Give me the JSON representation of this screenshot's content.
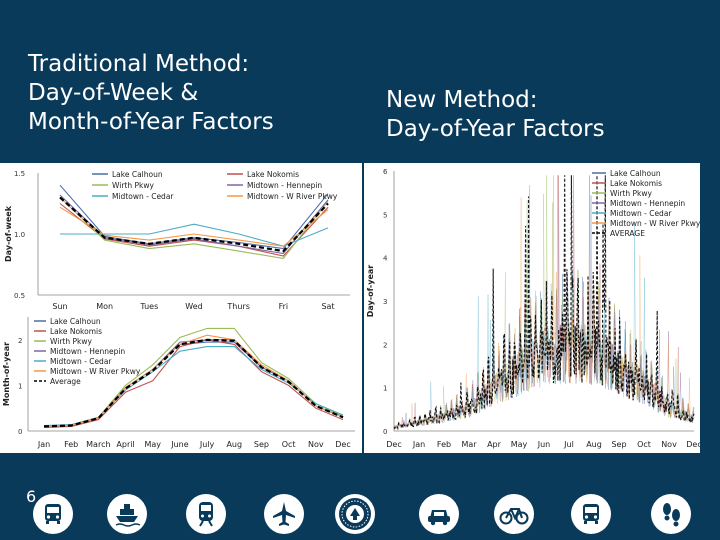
{
  "slide": {
    "title_left_lines": [
      "Traditional Method:",
      "Day-of-Week &",
      "Month-of-Year Factors"
    ],
    "title_right_lines": [
      "New Method:",
      "Day-of-Year Factors"
    ],
    "page_number": "6",
    "icons": [
      "bus-icon",
      "ferry-icon",
      "train-icon",
      "airplane-icon",
      "department-seal-icon",
      "car-icon",
      "bicycle-icon",
      "bus-icon",
      "walking-footprints-icon"
    ]
  },
  "chart_data": [
    {
      "type": "line",
      "ylabel": "Day-of-week",
      "categories": [
        "Sun",
        "Mon",
        "Tues",
        "Wed",
        "Thurs",
        "Fri",
        "Sat"
      ],
      "yticks": [
        "0.5",
        "1.0",
        "1.5"
      ],
      "ylim": [
        0.5,
        1.5
      ],
      "grid": false,
      "legend": "top, two columns",
      "series": [
        {
          "name": "Lake Calhoun",
          "color": "#4a6fa5",
          "values": [
            1.4,
            0.98,
            0.92,
            0.97,
            0.93,
            0.88,
            1.33
          ]
        },
        {
          "name": "Lake Nokomis",
          "color": "#c0504d",
          "values": [
            1.25,
            0.96,
            0.9,
            0.95,
            0.9,
            0.82,
            1.22
          ]
        },
        {
          "name": "Wirth Pkwy",
          "color": "#9bbb59",
          "values": [
            1.3,
            0.95,
            0.88,
            0.92,
            0.86,
            0.8,
            1.27
          ]
        },
        {
          "name": "Midtown - Hennepin",
          "color": "#8064a2",
          "values": [
            1.32,
            0.97,
            0.91,
            0.96,
            0.9,
            0.84,
            1.28
          ]
        },
        {
          "name": "Midtown - Cedar",
          "color": "#4bacc6",
          "values": [
            1.0,
            1.0,
            1.0,
            1.08,
            1.0,
            0.9,
            1.05
          ]
        },
        {
          "name": "Midtown - W River Pkwy",
          "color": "#f79646",
          "values": [
            1.22,
            0.99,
            0.95,
            1.0,
            0.95,
            0.9,
            1.2
          ]
        },
        {
          "name": "",
          "color": "#000000",
          "dashed": true,
          "values": [
            1.3,
            0.97,
            0.92,
            0.97,
            0.92,
            0.86,
            1.25
          ]
        }
      ]
    },
    {
      "type": "line",
      "ylabel": "Month-of-year",
      "categories": [
        "Jan",
        "Feb",
        "March",
        "April",
        "May",
        "June",
        "July",
        "Aug",
        "Sep",
        "Oct",
        "Nov",
        "Dec"
      ],
      "yticks": [
        "0",
        "1",
        "2"
      ],
      "ylim": [
        0,
        2.5
      ],
      "grid": false,
      "legend": "top-left",
      "series": [
        {
          "name": "Lake Calhoun",
          "color": "#4a6fa5",
          "values": [
            0.1,
            0.12,
            0.28,
            0.95,
            1.35,
            1.9,
            1.95,
            1.95,
            1.4,
            1.1,
            0.55,
            0.3
          ]
        },
        {
          "name": "Lake Nokomis",
          "color": "#c0504d",
          "values": [
            0.08,
            0.1,
            0.25,
            0.85,
            1.1,
            1.85,
            2.0,
            1.9,
            1.3,
            1.0,
            0.5,
            0.25
          ]
        },
        {
          "name": "Wirth Pkwy",
          "color": "#9bbb59",
          "values": [
            0.1,
            0.12,
            0.3,
            1.0,
            1.45,
            2.05,
            2.25,
            2.25,
            1.5,
            1.15,
            0.6,
            0.32
          ]
        },
        {
          "name": "Midtown - Hennepin",
          "color": "#8064a2",
          "values": [
            0.1,
            0.12,
            0.28,
            0.95,
            1.35,
            1.95,
            2.0,
            2.0,
            1.4,
            1.1,
            0.55,
            0.3
          ]
        },
        {
          "name": "Midtown - Cedar",
          "color": "#4bacc6",
          "values": [
            0.12,
            0.14,
            0.3,
            0.9,
            1.3,
            1.75,
            1.85,
            1.85,
            1.35,
            1.05,
            0.6,
            0.35
          ]
        },
        {
          "name": "Midtown - W River Pkwy",
          "color": "#f79646",
          "values": [
            0.1,
            0.12,
            0.28,
            0.95,
            1.35,
            1.9,
            2.1,
            2.0,
            1.45,
            1.1,
            0.55,
            0.3
          ]
        },
        {
          "name": "Average",
          "color": "#000000",
          "dashed": true,
          "values": [
            0.1,
            0.12,
            0.28,
            0.93,
            1.32,
            1.9,
            2.0,
            1.98,
            1.4,
            1.08,
            0.55,
            0.3
          ]
        }
      ]
    },
    {
      "type": "line",
      "ylabel": "Day-of-year",
      "categories": [
        "Dec",
        "Jan",
        "Feb",
        "Mar",
        "Apr",
        "May",
        "Jun",
        "Jul",
        "Aug",
        "Sep",
        "Oct",
        "Nov",
        "Dec"
      ],
      "yticks": [
        "0",
        "1",
        "2",
        "3",
        "4",
        "5",
        "6"
      ],
      "ylim": [
        0,
        6
      ],
      "grid": false,
      "legend": "top-right",
      "envelope_month_levels": [
        0.1,
        0.2,
        0.35,
        0.55,
        1.05,
        1.5,
        1.9,
        2.0,
        1.95,
        1.5,
        1.1,
        0.55,
        0.3
      ],
      "series": [
        {
          "name": "Lake Calhoun",
          "color": "#4a6fa5"
        },
        {
          "name": "Lake Nokomis",
          "color": "#c0504d"
        },
        {
          "name": "Wirth Pkwy",
          "color": "#9bbb59"
        },
        {
          "name": "Midtown - Hennepin",
          "color": "#8064a2"
        },
        {
          "name": "Midtown - Cedar",
          "color": "#4bacc6"
        },
        {
          "name": "Midtown - W River Pkwy",
          "color": "#f79646"
        },
        {
          "name": "AVERAGE",
          "color": "#000000",
          "dashed": true
        }
      ]
    }
  ]
}
